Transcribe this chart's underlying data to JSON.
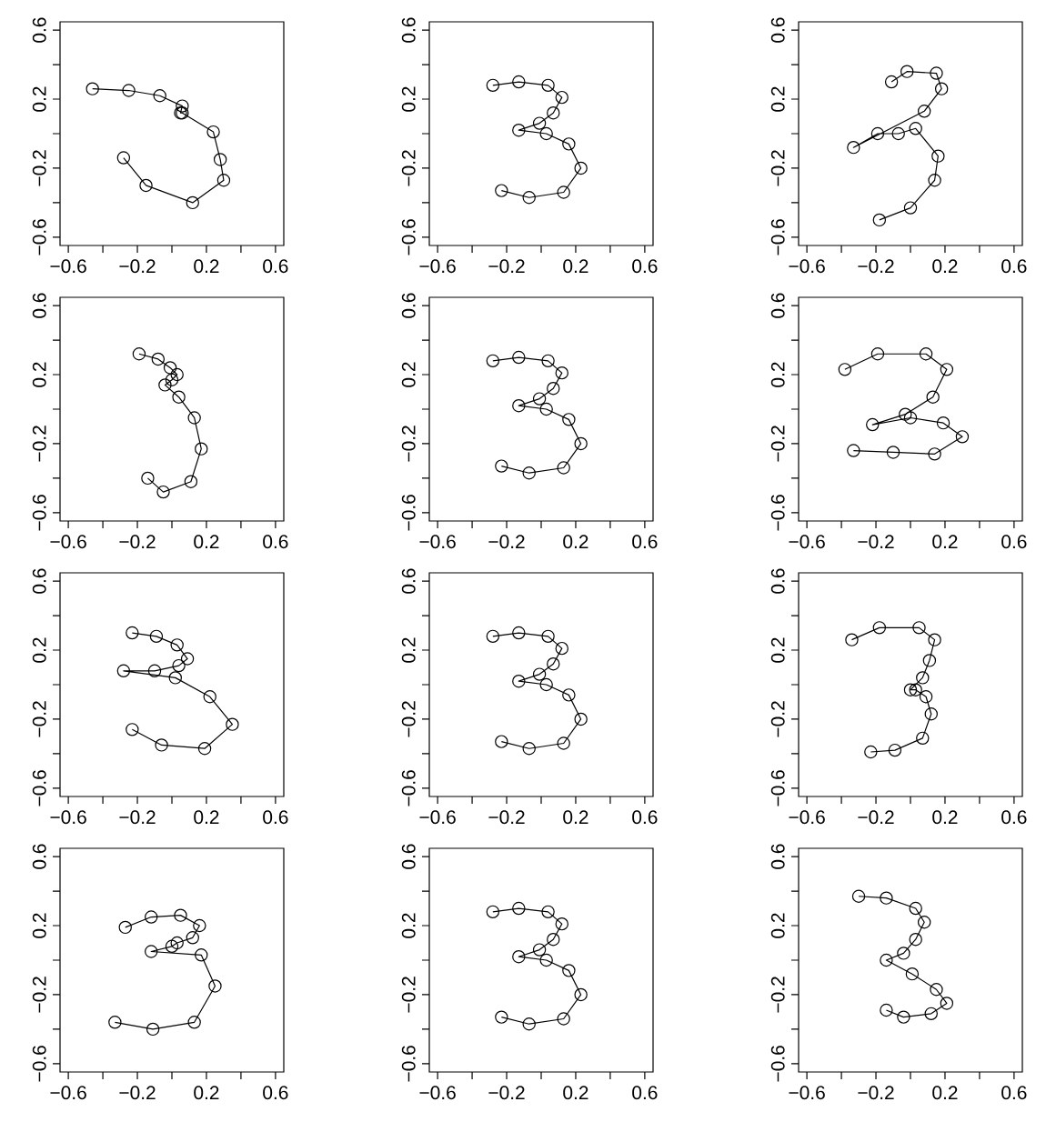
{
  "chart_data": [
    {
      "type": "line",
      "marker": "circle",
      "xlim": [
        -0.648,
        0.648
      ],
      "ylim": [
        -0.648,
        0.648
      ],
      "xticks": [
        {
          "value": -0.6,
          "label": "−0.6"
        },
        {
          "value": -0.4,
          "label": null
        },
        {
          "value": -0.2,
          "label": "−0.2"
        },
        {
          "value": 0,
          "label": null
        },
        {
          "value": 0.2,
          "label": "0.2"
        },
        {
          "value": 0.4,
          "label": null
        },
        {
          "value": 0.6,
          "label": "0.6"
        }
      ],
      "yticks": [
        {
          "value": -0.6,
          "label": "−0.6"
        },
        {
          "value": -0.4,
          "label": null
        },
        {
          "value": -0.2,
          "label": "−0.2"
        },
        {
          "value": 0,
          "label": null
        },
        {
          "value": 0.2,
          "label": "0.2"
        },
        {
          "value": 0.4,
          "label": null
        },
        {
          "value": 0.6,
          "label": "0.6"
        }
      ],
      "series": [
        {
          "color": "#000000",
          "x": [
            -0.46,
            -0.25,
            -0.07,
            0.06,
            0.05,
            0.06,
            0.24,
            0.28,
            0.3,
            0.12,
            -0.15,
            -0.28
          ],
          "values": [
            0.26,
            0.25,
            0.22,
            0.16,
            0.12,
            0.12,
            0.01,
            -0.15,
            -0.27,
            -0.4,
            -0.3,
            -0.14
          ]
        }
      ]
    },
    {
      "type": "line",
      "marker": "circle",
      "xlim": [
        -0.648,
        0.648
      ],
      "ylim": [
        -0.648,
        0.648
      ],
      "xticks": [
        {
          "value": -0.6,
          "label": "−0.6"
        },
        {
          "value": -0.4,
          "label": null
        },
        {
          "value": -0.2,
          "label": "−0.2"
        },
        {
          "value": 0,
          "label": null
        },
        {
          "value": 0.2,
          "label": "0.2"
        },
        {
          "value": 0.4,
          "label": null
        },
        {
          "value": 0.6,
          "label": "0.6"
        }
      ],
      "yticks": [
        {
          "value": -0.6,
          "label": "−0.6"
        },
        {
          "value": -0.4,
          "label": null
        },
        {
          "value": -0.2,
          "label": "−0.2"
        },
        {
          "value": 0,
          "label": null
        },
        {
          "value": 0.2,
          "label": "0.2"
        },
        {
          "value": 0.4,
          "label": null
        },
        {
          "value": 0.6,
          "label": "0.6"
        }
      ],
      "series": [
        {
          "color": "#000000",
          "x": [
            -0.28,
            -0.13,
            0.04,
            0.12,
            0.07,
            -0.01,
            -0.13,
            0.03,
            0.16,
            0.23,
            0.13,
            -0.07,
            -0.23
          ],
          "values": [
            0.28,
            0.3,
            0.28,
            0.21,
            0.12,
            0.06,
            0.02,
            0.0,
            -0.06,
            -0.2,
            -0.34,
            -0.37,
            -0.33
          ]
        }
      ]
    },
    {
      "type": "line",
      "marker": "circle",
      "xlim": [
        -0.648,
        0.648
      ],
      "ylim": [
        -0.648,
        0.648
      ],
      "xticks": [
        {
          "value": -0.6,
          "label": "−0.6"
        },
        {
          "value": -0.4,
          "label": null
        },
        {
          "value": -0.2,
          "label": "−0.2"
        },
        {
          "value": 0,
          "label": null
        },
        {
          "value": 0.2,
          "label": "0.2"
        },
        {
          "value": 0.4,
          "label": null
        },
        {
          "value": 0.6,
          "label": "0.6"
        }
      ],
      "yticks": [
        {
          "value": -0.6,
          "label": "−0.6"
        },
        {
          "value": -0.4,
          "label": null
        },
        {
          "value": -0.2,
          "label": "−0.2"
        },
        {
          "value": 0,
          "label": null
        },
        {
          "value": 0.2,
          "label": "0.2"
        },
        {
          "value": 0.4,
          "label": null
        },
        {
          "value": 0.6,
          "label": "0.6"
        }
      ],
      "series": [
        {
          "color": "#000000",
          "x": [
            -0.11,
            -0.02,
            0.15,
            0.18,
            0.08,
            -0.33,
            -0.19,
            -0.07,
            0.03,
            0.16,
            0.14,
            0.0,
            -0.18
          ],
          "values": [
            0.3,
            0.36,
            0.35,
            0.26,
            0.13,
            -0.08,
            0.0,
            0.0,
            0.03,
            -0.13,
            -0.27,
            -0.43,
            -0.5
          ]
        }
      ]
    },
    {
      "type": "line",
      "marker": "circle",
      "xlim": [
        -0.648,
        0.648
      ],
      "ylim": [
        -0.648,
        0.648
      ],
      "xticks": [
        {
          "value": -0.6,
          "label": "−0.6"
        },
        {
          "value": -0.4,
          "label": null
        },
        {
          "value": -0.2,
          "label": "−0.2"
        },
        {
          "value": 0,
          "label": null
        },
        {
          "value": 0.2,
          "label": "0.2"
        },
        {
          "value": 0.4,
          "label": null
        },
        {
          "value": 0.6,
          "label": "0.6"
        }
      ],
      "yticks": [
        {
          "value": -0.6,
          "label": "−0.6"
        },
        {
          "value": -0.4,
          "label": null
        },
        {
          "value": -0.2,
          "label": "−0.2"
        },
        {
          "value": 0,
          "label": null
        },
        {
          "value": 0.2,
          "label": "0.2"
        },
        {
          "value": 0.4,
          "label": null
        },
        {
          "value": 0.6,
          "label": "0.6"
        }
      ],
      "series": [
        {
          "color": "#000000",
          "x": [
            -0.19,
            -0.08,
            -0.01,
            0.03,
            0.0,
            -0.04,
            0.04,
            0.13,
            0.17,
            0.11,
            -0.05,
            -0.14
          ],
          "values": [
            0.32,
            0.29,
            0.24,
            0.2,
            0.17,
            0.14,
            0.07,
            -0.05,
            -0.23,
            -0.42,
            -0.48,
            -0.4
          ]
        }
      ]
    },
    {
      "type": "line",
      "marker": "circle",
      "xlim": [
        -0.648,
        0.648
      ],
      "ylim": [
        -0.648,
        0.648
      ],
      "xticks": [
        {
          "value": -0.6,
          "label": "−0.6"
        },
        {
          "value": -0.4,
          "label": null
        },
        {
          "value": -0.2,
          "label": "−0.2"
        },
        {
          "value": 0,
          "label": null
        },
        {
          "value": 0.2,
          "label": "0.2"
        },
        {
          "value": 0.4,
          "label": null
        },
        {
          "value": 0.6,
          "label": "0.6"
        }
      ],
      "yticks": [
        {
          "value": -0.6,
          "label": "−0.6"
        },
        {
          "value": -0.4,
          "label": null
        },
        {
          "value": -0.2,
          "label": "−0.2"
        },
        {
          "value": 0,
          "label": null
        },
        {
          "value": 0.2,
          "label": "0.2"
        },
        {
          "value": 0.4,
          "label": null
        },
        {
          "value": 0.6,
          "label": "0.6"
        }
      ],
      "series": [
        {
          "color": "#000000",
          "x": [
            -0.28,
            -0.13,
            0.04,
            0.12,
            0.07,
            -0.01,
            -0.13,
            0.03,
            0.16,
            0.23,
            0.13,
            -0.07,
            -0.23
          ],
          "values": [
            0.28,
            0.3,
            0.28,
            0.21,
            0.12,
            0.06,
            0.02,
            0.0,
            -0.06,
            -0.2,
            -0.34,
            -0.37,
            -0.33
          ]
        }
      ]
    },
    {
      "type": "line",
      "marker": "circle",
      "xlim": [
        -0.648,
        0.648
      ],
      "ylim": [
        -0.648,
        0.648
      ],
      "xticks": [
        {
          "value": -0.6,
          "label": "−0.6"
        },
        {
          "value": -0.4,
          "label": null
        },
        {
          "value": -0.2,
          "label": "−0.2"
        },
        {
          "value": 0,
          "label": null
        },
        {
          "value": 0.2,
          "label": "0.2"
        },
        {
          "value": 0.4,
          "label": null
        },
        {
          "value": 0.6,
          "label": "0.6"
        }
      ],
      "yticks": [
        {
          "value": -0.6,
          "label": "−0.6"
        },
        {
          "value": -0.4,
          "label": null
        },
        {
          "value": -0.2,
          "label": "−0.2"
        },
        {
          "value": 0,
          "label": null
        },
        {
          "value": 0.2,
          "label": "0.2"
        },
        {
          "value": 0.4,
          "label": null
        },
        {
          "value": 0.6,
          "label": "0.6"
        }
      ],
      "series": [
        {
          "color": "#000000",
          "x": [
            -0.38,
            -0.19,
            0.09,
            0.21,
            0.13,
            -0.03,
            -0.22,
            0.0,
            0.19,
            0.3,
            0.14,
            -0.1,
            -0.33
          ],
          "values": [
            0.23,
            0.32,
            0.32,
            0.23,
            0.07,
            -0.03,
            -0.09,
            -0.05,
            -0.08,
            -0.16,
            -0.26,
            -0.25,
            -0.24
          ]
        }
      ]
    },
    {
      "type": "line",
      "marker": "circle",
      "xlim": [
        -0.648,
        0.648
      ],
      "ylim": [
        -0.648,
        0.648
      ],
      "xticks": [
        {
          "value": -0.6,
          "label": "−0.6"
        },
        {
          "value": -0.4,
          "label": null
        },
        {
          "value": -0.2,
          "label": "−0.2"
        },
        {
          "value": 0,
          "label": null
        },
        {
          "value": 0.2,
          "label": "0.2"
        },
        {
          "value": 0.4,
          "label": null
        },
        {
          "value": 0.6,
          "label": "0.6"
        }
      ],
      "yticks": [
        {
          "value": -0.6,
          "label": "−0.6"
        },
        {
          "value": -0.4,
          "label": null
        },
        {
          "value": -0.2,
          "label": "−0.2"
        },
        {
          "value": 0,
          "label": null
        },
        {
          "value": 0.2,
          "label": "0.2"
        },
        {
          "value": 0.4,
          "label": null
        },
        {
          "value": 0.6,
          "label": "0.6"
        }
      ],
      "series": [
        {
          "color": "#000000",
          "x": [
            -0.23,
            -0.09,
            0.03,
            0.09,
            0.04,
            -0.1,
            -0.28,
            0.02,
            0.22,
            0.35,
            0.19,
            -0.06,
            -0.23
          ],
          "values": [
            0.3,
            0.28,
            0.23,
            0.15,
            0.11,
            0.08,
            0.08,
            0.04,
            -0.07,
            -0.23,
            -0.37,
            -0.35,
            -0.26
          ]
        }
      ]
    },
    {
      "type": "line",
      "marker": "circle",
      "xlim": [
        -0.648,
        0.648
      ],
      "ylim": [
        -0.648,
        0.648
      ],
      "xticks": [
        {
          "value": -0.6,
          "label": "−0.6"
        },
        {
          "value": -0.4,
          "label": null
        },
        {
          "value": -0.2,
          "label": "−0.2"
        },
        {
          "value": 0,
          "label": null
        },
        {
          "value": 0.2,
          "label": "0.2"
        },
        {
          "value": 0.4,
          "label": null
        },
        {
          "value": 0.6,
          "label": "0.6"
        }
      ],
      "yticks": [
        {
          "value": -0.6,
          "label": "−0.6"
        },
        {
          "value": -0.4,
          "label": null
        },
        {
          "value": -0.2,
          "label": "−0.2"
        },
        {
          "value": 0,
          "label": null
        },
        {
          "value": 0.2,
          "label": "0.2"
        },
        {
          "value": 0.4,
          "label": null
        },
        {
          "value": 0.6,
          "label": "0.6"
        }
      ],
      "series": [
        {
          "color": "#000000",
          "x": [
            -0.28,
            -0.13,
            0.04,
            0.12,
            0.07,
            -0.01,
            -0.13,
            0.03,
            0.16,
            0.23,
            0.13,
            -0.07,
            -0.23
          ],
          "values": [
            0.28,
            0.3,
            0.28,
            0.21,
            0.12,
            0.06,
            0.02,
            0.0,
            -0.06,
            -0.2,
            -0.34,
            -0.37,
            -0.33
          ]
        }
      ]
    },
    {
      "type": "line",
      "marker": "circle",
      "xlim": [
        -0.648,
        0.648
      ],
      "ylim": [
        -0.648,
        0.648
      ],
      "xticks": [
        {
          "value": -0.6,
          "label": "−0.6"
        },
        {
          "value": -0.4,
          "label": null
        },
        {
          "value": -0.2,
          "label": "−0.2"
        },
        {
          "value": 0,
          "label": null
        },
        {
          "value": 0.2,
          "label": "0.2"
        },
        {
          "value": 0.4,
          "label": null
        },
        {
          "value": 0.6,
          "label": "0.6"
        }
      ],
      "yticks": [
        {
          "value": -0.6,
          "label": "−0.6"
        },
        {
          "value": -0.4,
          "label": null
        },
        {
          "value": -0.2,
          "label": "−0.2"
        },
        {
          "value": 0,
          "label": null
        },
        {
          "value": 0.2,
          "label": "0.2"
        },
        {
          "value": 0.4,
          "label": null
        },
        {
          "value": 0.6,
          "label": "0.6"
        }
      ],
      "series": [
        {
          "color": "#000000",
          "x": [
            -0.34,
            -0.18,
            0.05,
            0.14,
            0.11,
            0.07,
            0.0,
            0.03,
            0.09,
            0.12,
            0.07,
            -0.09,
            -0.23
          ],
          "values": [
            0.26,
            0.33,
            0.33,
            0.26,
            0.14,
            0.04,
            -0.03,
            -0.03,
            -0.07,
            -0.17,
            -0.31,
            -0.38,
            -0.39
          ]
        }
      ]
    },
    {
      "type": "line",
      "marker": "circle",
      "xlim": [
        -0.648,
        0.648
      ],
      "ylim": [
        -0.648,
        0.648
      ],
      "xticks": [
        {
          "value": -0.6,
          "label": "−0.6"
        },
        {
          "value": -0.4,
          "label": null
        },
        {
          "value": -0.2,
          "label": "−0.2"
        },
        {
          "value": 0,
          "label": null
        },
        {
          "value": 0.2,
          "label": "0.2"
        },
        {
          "value": 0.4,
          "label": null
        },
        {
          "value": 0.6,
          "label": "0.6"
        }
      ],
      "yticks": [
        {
          "value": -0.6,
          "label": "−0.6"
        },
        {
          "value": -0.4,
          "label": null
        },
        {
          "value": -0.2,
          "label": "−0.2"
        },
        {
          "value": 0,
          "label": null
        },
        {
          "value": 0.2,
          "label": "0.2"
        },
        {
          "value": 0.4,
          "label": null
        },
        {
          "value": 0.6,
          "label": "0.6"
        }
      ],
      "series": [
        {
          "color": "#000000",
          "x": [
            -0.27,
            -0.12,
            0.05,
            0.16,
            0.12,
            0.03,
            0.0,
            -0.12,
            0.17,
            0.25,
            0.13,
            -0.11,
            -0.33
          ],
          "values": [
            0.19,
            0.25,
            0.26,
            0.2,
            0.13,
            0.1,
            0.08,
            0.05,
            0.03,
            -0.15,
            -0.36,
            -0.4,
            -0.36
          ]
        }
      ]
    },
    {
      "type": "line",
      "marker": "circle",
      "xlim": [
        -0.648,
        0.648
      ],
      "ylim": [
        -0.648,
        0.648
      ],
      "xticks": [
        {
          "value": -0.6,
          "label": "−0.6"
        },
        {
          "value": -0.4,
          "label": null
        },
        {
          "value": -0.2,
          "label": "−0.2"
        },
        {
          "value": 0,
          "label": null
        },
        {
          "value": 0.2,
          "label": "0.2"
        },
        {
          "value": 0.4,
          "label": null
        },
        {
          "value": 0.6,
          "label": "0.6"
        }
      ],
      "yticks": [
        {
          "value": -0.6,
          "label": "−0.6"
        },
        {
          "value": -0.4,
          "label": null
        },
        {
          "value": -0.2,
          "label": "−0.2"
        },
        {
          "value": 0,
          "label": null
        },
        {
          "value": 0.2,
          "label": "0.2"
        },
        {
          "value": 0.4,
          "label": null
        },
        {
          "value": 0.6,
          "label": "0.6"
        }
      ],
      "series": [
        {
          "color": "#000000",
          "x": [
            -0.28,
            -0.13,
            0.04,
            0.12,
            0.07,
            -0.01,
            -0.13,
            0.03,
            0.16,
            0.23,
            0.13,
            -0.07,
            -0.23
          ],
          "values": [
            0.28,
            0.3,
            0.28,
            0.21,
            0.12,
            0.06,
            0.02,
            0.0,
            -0.06,
            -0.2,
            -0.34,
            -0.37,
            -0.33
          ]
        }
      ]
    },
    {
      "type": "line",
      "marker": "circle",
      "xlim": [
        -0.648,
        0.648
      ],
      "ylim": [
        -0.648,
        0.648
      ],
      "xticks": [
        {
          "value": -0.6,
          "label": "−0.6"
        },
        {
          "value": -0.4,
          "label": null
        },
        {
          "value": -0.2,
          "label": "−0.2"
        },
        {
          "value": 0,
          "label": null
        },
        {
          "value": 0.2,
          "label": "0.2"
        },
        {
          "value": 0.4,
          "label": null
        },
        {
          "value": 0.6,
          "label": "0.6"
        }
      ],
      "yticks": [
        {
          "value": -0.6,
          "label": "−0.6"
        },
        {
          "value": -0.4,
          "label": null
        },
        {
          "value": -0.2,
          "label": "−0.2"
        },
        {
          "value": 0,
          "label": null
        },
        {
          "value": 0.2,
          "label": "0.2"
        },
        {
          "value": 0.4,
          "label": null
        },
        {
          "value": 0.6,
          "label": "0.6"
        }
      ],
      "series": [
        {
          "color": "#000000",
          "x": [
            -0.3,
            -0.14,
            0.03,
            0.08,
            0.03,
            -0.04,
            -0.14,
            0.01,
            0.15,
            0.21,
            0.12,
            -0.04,
            -0.14
          ],
          "values": [
            0.37,
            0.36,
            0.3,
            0.22,
            0.12,
            0.04,
            0.0,
            -0.08,
            -0.17,
            -0.25,
            -0.31,
            -0.33,
            -0.29
          ]
        }
      ]
    }
  ]
}
